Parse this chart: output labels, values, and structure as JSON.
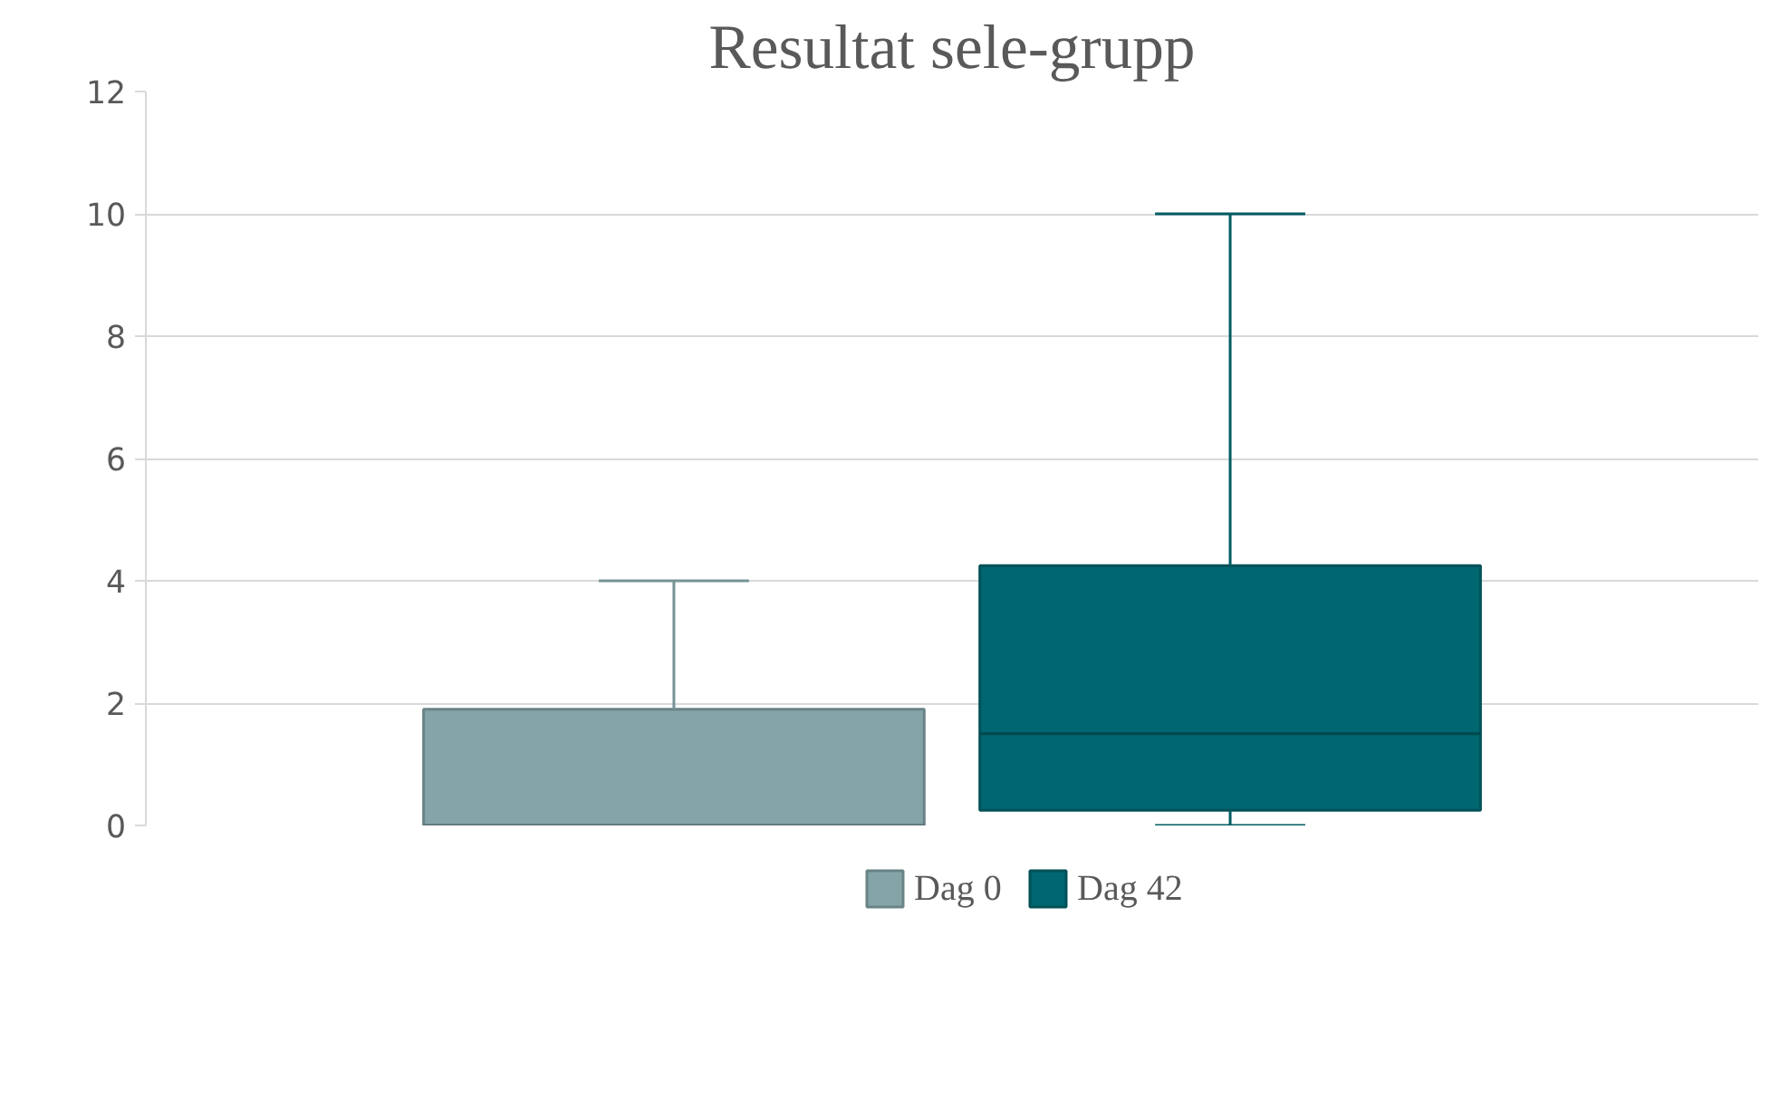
{
  "chart_data": {
    "type": "box",
    "title": "Resultat sele-grupp",
    "categories": [
      null
    ],
    "series": [
      {
        "name": "Dag 0",
        "color": "#84a4a8",
        "boxes": [
          {
            "low": 0,
            "q1": 0,
            "median": 0,
            "q3": 1.9,
            "high": 4
          }
        ]
      },
      {
        "name": "Dag 42",
        "color": "#00666f",
        "boxes": [
          {
            "low": 0,
            "q1": 0.25,
            "median": 1.5,
            "q3": 4.25,
            "high": 10
          }
        ]
      }
    ],
    "ylim": [
      0,
      12
    ],
    "yticks": [
      0,
      2,
      4,
      6,
      8,
      10,
      12
    ],
    "grid": "y",
    "legend": "bottom",
    "tick_labels": "y"
  }
}
